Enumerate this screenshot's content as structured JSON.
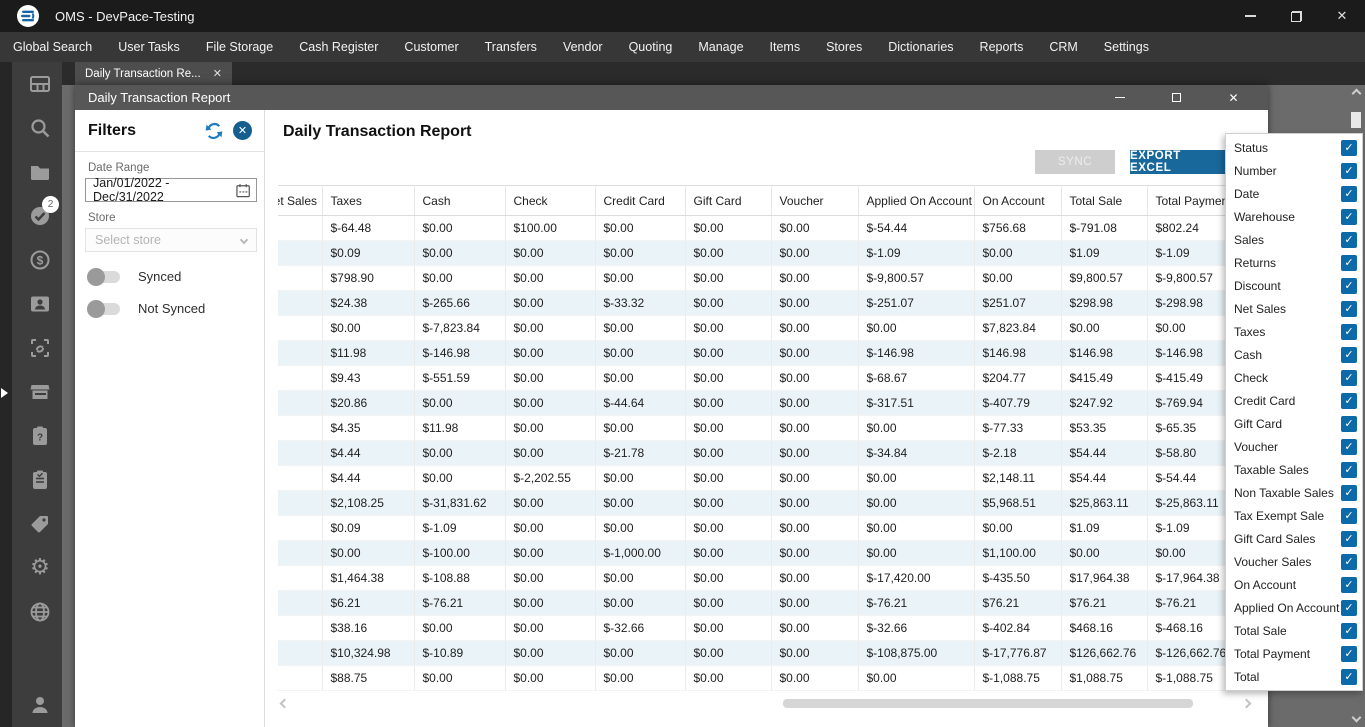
{
  "app": {
    "title": "OMS - DevPace-Testing"
  },
  "menu": {
    "items": [
      "Global Search",
      "User Tasks",
      "File Storage",
      "Cash Register",
      "Customer",
      "Transfers",
      "Vendor",
      "Quoting",
      "Manage",
      "Items",
      "Stores",
      "Dictionaries",
      "Reports",
      "CRM",
      "Settings"
    ]
  },
  "tab": {
    "label": "Daily Transaction Re...",
    "close_glyph": "✕"
  },
  "inner_window": {
    "title": "Daily Transaction Report"
  },
  "sidebar": {
    "badge": "2",
    "items": [
      "dashboard",
      "search",
      "folder",
      "tasks-check",
      "payments-dollar",
      "contact-card",
      "scan-box",
      "store-front",
      "clipboard-question",
      "clipboard-list",
      "tag",
      "gear",
      "globe"
    ],
    "bottom_item": "user-profile"
  },
  "filters": {
    "title": "Filters",
    "date_range_label": "Date Range",
    "date_range_value": "Jan/01/2022 - Dec/31/2022",
    "store_label": "Store",
    "store_placeholder": "Select store",
    "synced_label": "Synced",
    "not_synced_label": "Not Synced",
    "synced_on": false,
    "not_synced_on": false
  },
  "report": {
    "title": "Daily Transaction Report",
    "sync_label": "SYNC",
    "export_label": "EXPORT EXCEL"
  },
  "table": {
    "columns": [
      "Net Sales",
      "Taxes",
      "Cash",
      "Check",
      "Credit Card",
      "Gift Card",
      "Voucher",
      "Applied On Account",
      "On Account",
      "Total Sale",
      "Total Payment"
    ],
    "first_column_clipped": true,
    "rows": [
      [
        "",
        "$-64.48",
        "$0.00",
        "$100.00",
        "$0.00",
        "$0.00",
        "$0.00",
        "$-54.44",
        "$756.68",
        "$-791.08",
        "$802.24"
      ],
      [
        "",
        "$0.09",
        "$0.00",
        "$0.00",
        "$0.00",
        "$0.00",
        "$0.00",
        "$-1.09",
        "$0.00",
        "$1.09",
        "$-1.09"
      ],
      [
        "",
        "$798.90",
        "$0.00",
        "$0.00",
        "$0.00",
        "$0.00",
        "$0.00",
        "$-9,800.57",
        "$0.00",
        "$9,800.57",
        "$-9,800.57"
      ],
      [
        "",
        "$24.38",
        "$-265.66",
        "$0.00",
        "$-33.32",
        "$0.00",
        "$0.00",
        "$-251.07",
        "$251.07",
        "$298.98",
        "$-298.98"
      ],
      [
        "",
        "$0.00",
        "$-7,823.84",
        "$0.00",
        "$0.00",
        "$0.00",
        "$0.00",
        "$0.00",
        "$7,823.84",
        "$0.00",
        "$0.00"
      ],
      [
        "",
        "$11.98",
        "$-146.98",
        "$0.00",
        "$0.00",
        "$0.00",
        "$0.00",
        "$-146.98",
        "$146.98",
        "$146.98",
        "$-146.98"
      ],
      [
        "",
        "$9.43",
        "$-551.59",
        "$0.00",
        "$0.00",
        "$0.00",
        "$0.00",
        "$-68.67",
        "$204.77",
        "$415.49",
        "$-415.49"
      ],
      [
        "",
        "$20.86",
        "$0.00",
        "$0.00",
        "$-44.64",
        "$0.00",
        "$0.00",
        "$-317.51",
        "$-407.79",
        "$247.92",
        "$-769.94"
      ],
      [
        "",
        "$4.35",
        "$11.98",
        "$0.00",
        "$0.00",
        "$0.00",
        "$0.00",
        "$0.00",
        "$-77.33",
        "$53.35",
        "$-65.35"
      ],
      [
        "",
        "$4.44",
        "$0.00",
        "$0.00",
        "$-21.78",
        "$0.00",
        "$0.00",
        "$-34.84",
        "$-2.18",
        "$54.44",
        "$-58.80"
      ],
      [
        "",
        "$4.44",
        "$0.00",
        "$-2,202.55",
        "$0.00",
        "$0.00",
        "$0.00",
        "$0.00",
        "$2,148.11",
        "$54.44",
        "$-54.44"
      ],
      [
        "",
        "$2,108.25",
        "$-31,831.62",
        "$0.00",
        "$0.00",
        "$0.00",
        "$0.00",
        "$0.00",
        "$5,968.51",
        "$25,863.11",
        "$-25,863.11"
      ],
      [
        "",
        "$0.09",
        "$-1.09",
        "$0.00",
        "$0.00",
        "$0.00",
        "$0.00",
        "$0.00",
        "$0.00",
        "$1.09",
        "$-1.09"
      ],
      [
        "",
        "$0.00",
        "$-100.00",
        "$0.00",
        "$-1,000.00",
        "$0.00",
        "$0.00",
        "$0.00",
        "$1,100.00",
        "$0.00",
        "$0.00"
      ],
      [
        "",
        "$1,464.38",
        "$-108.88",
        "$0.00",
        "$0.00",
        "$0.00",
        "$0.00",
        "$-17,420.00",
        "$-435.50",
        "$17,964.38",
        "$-17,964.38"
      ],
      [
        "",
        "$6.21",
        "$-76.21",
        "$0.00",
        "$0.00",
        "$0.00",
        "$0.00",
        "$-76.21",
        "$76.21",
        "$76.21",
        "$-76.21"
      ],
      [
        "",
        "$38.16",
        "$0.00",
        "$0.00",
        "$-32.66",
        "$0.00",
        "$0.00",
        "$-32.66",
        "$-402.84",
        "$468.16",
        "$-468.16"
      ],
      [
        "",
        "$10,324.98",
        "$-10.89",
        "$0.00",
        "$0.00",
        "$0.00",
        "$0.00",
        "$-108,875.00",
        "$-17,776.87",
        "$126,662.76",
        "$-126,662.76"
      ],
      [
        "",
        "$88.75",
        "$0.00",
        "$0.00",
        "$0.00",
        "$0.00",
        "$0.00",
        "$0.00",
        "$-1,088.75",
        "$1,088.75",
        "$-1,088.75"
      ]
    ]
  },
  "column_chooser": {
    "items": [
      {
        "label": "Status",
        "checked": true
      },
      {
        "label": "Number",
        "checked": true
      },
      {
        "label": "Date",
        "checked": true
      },
      {
        "label": "Warehouse",
        "checked": true
      },
      {
        "label": "Sales",
        "checked": true
      },
      {
        "label": "Returns",
        "checked": true
      },
      {
        "label": "Discount",
        "checked": true
      },
      {
        "label": "Net Sales",
        "checked": true
      },
      {
        "label": "Taxes",
        "checked": true
      },
      {
        "label": "Cash",
        "checked": true
      },
      {
        "label": "Check",
        "checked": true
      },
      {
        "label": "Credit Card",
        "checked": true
      },
      {
        "label": "Gift Card",
        "checked": true
      },
      {
        "label": "Voucher",
        "checked": true
      },
      {
        "label": "Taxable Sales",
        "checked": true
      },
      {
        "label": "Non Taxable Sales",
        "checked": true
      },
      {
        "label": "Tax Exempt Sale",
        "checked": true
      },
      {
        "label": "Gift Card Sales",
        "checked": true
      },
      {
        "label": "Voucher Sales",
        "checked": true
      },
      {
        "label": "On Account",
        "checked": true
      },
      {
        "label": "Applied On Account",
        "checked": true
      },
      {
        "label": "Total Sale",
        "checked": true
      },
      {
        "label": "Total Payment",
        "checked": true
      },
      {
        "label": "Total",
        "checked": true
      }
    ]
  },
  "colors": {
    "accent_blue": "#1e7dc0",
    "checkbox_blue": "#0d6aa8",
    "export_button_blue": "#19689c",
    "row_stripe": "#eaf3f8",
    "titlebar_dark": "#1b1b1b"
  }
}
